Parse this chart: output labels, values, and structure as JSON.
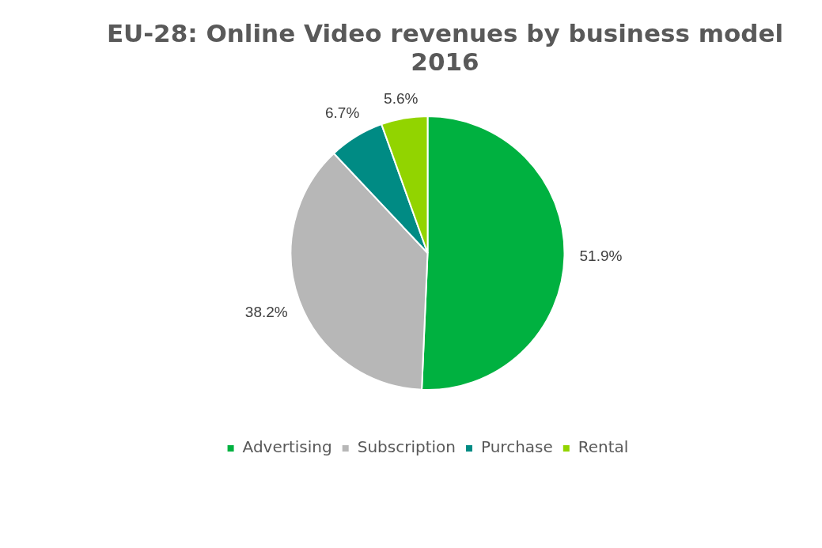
{
  "chart_data": {
    "type": "pie",
    "title": "EU-28: Online Video revenues by business model 2016",
    "categories": [
      "Advertising",
      "Subscription",
      "Purchase",
      "Rental"
    ],
    "values": [
      51.9,
      38.2,
      6.7,
      5.6
    ],
    "colors": [
      "#00b140",
      "#b7b7b7",
      "#008b84",
      "#92d400"
    ],
    "value_labels": [
      "51.9%",
      "38.2%",
      "6.7%",
      "5.6%"
    ],
    "legend": "bottom"
  }
}
